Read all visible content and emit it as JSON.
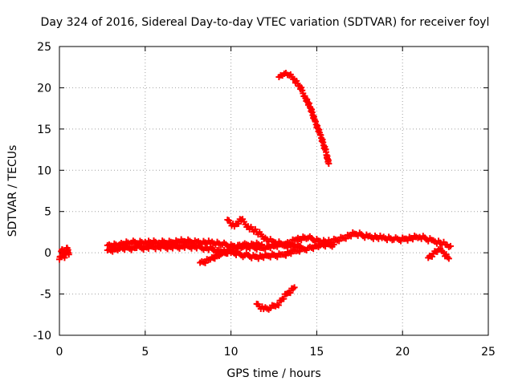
{
  "chart_data": {
    "type": "scatter",
    "title": "Day 324 of 2016, Sidereal Day-to-day VTEC variation (SDTVAR) for receiver foyl",
    "xlabel": "GPS time / hours",
    "ylabel": "SDTVAR / TECUs",
    "xlim": [
      0,
      25
    ],
    "ylim": [
      -10,
      25
    ],
    "xticks": [
      0,
      5,
      10,
      15,
      20,
      25
    ],
    "yticks": [
      -10,
      -5,
      0,
      5,
      10,
      15,
      20,
      25
    ],
    "grid": true,
    "marker": "+",
    "marker_color": "#ff0000",
    "series": [
      {
        "name": "segment-early",
        "x": [
          0.0,
          0.15,
          0.3,
          0.45,
          0.55
        ],
        "y": [
          -0.8,
          0.4,
          -0.6,
          0.6,
          -0.2
        ]
      },
      {
        "name": "segment-main-upper",
        "x": [
          2.8,
          3.5,
          4.2,
          5.0,
          5.8,
          6.5,
          7.2,
          8.0,
          8.8,
          9.5,
          10.2,
          11.0,
          11.8,
          12.5,
          13.2,
          13.8,
          14.5,
          15.2,
          15.8,
          16.5,
          17.2,
          18.0,
          18.8,
          19.5,
          20.2,
          21.0,
          21.8,
          22.5,
          22.8
        ],
        "y": [
          0.9,
          1.0,
          1.2,
          1.3,
          1.2,
          1.3,
          1.4,
          1.3,
          1.2,
          1.0,
          0.8,
          0.7,
          0.6,
          0.8,
          1.1,
          1.6,
          1.8,
          1.4,
          1.3,
          1.8,
          2.3,
          2.0,
          1.8,
          1.6,
          1.7,
          1.9,
          1.5,
          1.0,
          0.8
        ]
      },
      {
        "name": "segment-main-lower",
        "x": [
          2.8,
          3.5,
          4.5,
          5.5,
          6.5,
          7.5,
          8.5,
          9.2,
          10.0,
          10.8,
          11.5,
          12.2,
          13.0,
          13.8,
          14.5,
          15.2,
          16.0
        ],
        "y": [
          0.3,
          0.5,
          0.6,
          0.7,
          0.7,
          0.8,
          0.6,
          0.3,
          0.0,
          -0.3,
          -0.5,
          -0.4,
          -0.2,
          0.2,
          0.6,
          0.9,
          1.0
        ]
      },
      {
        "name": "segment-rising-from-negative",
        "x": [
          8.2,
          8.8,
          9.4,
          10.0,
          10.6,
          11.2,
          11.8
        ],
        "y": [
          -1.2,
          -0.8,
          -0.2,
          0.4,
          0.8,
          1.1,
          1.0
        ]
      },
      {
        "name": "segment-hump",
        "x": [
          9.8,
          10.2,
          10.6,
          11.0,
          11.5,
          12.0,
          12.5,
          13.0,
          13.5,
          14.0
        ],
        "y": [
          4.0,
          3.2,
          4.0,
          3.2,
          2.5,
          1.8,
          1.3,
          1.0,
          0.8,
          0.8
        ]
      },
      {
        "name": "segment-late-dip",
        "x": [
          21.5,
          21.8,
          22.1,
          22.4,
          22.7
        ],
        "y": [
          -0.6,
          -0.1,
          0.4,
          0.0,
          -0.7
        ]
      },
      {
        "name": "segment-high-arc",
        "x": [
          12.8,
          13.1,
          13.4,
          13.7,
          14.0,
          14.3,
          14.6,
          14.9,
          15.2,
          15.5,
          15.7
        ],
        "y": [
          21.3,
          21.7,
          21.5,
          21.0,
          20.2,
          19.0,
          17.7,
          16.0,
          14.3,
          12.5,
          10.8
        ]
      },
      {
        "name": "segment-negative",
        "x": [
          11.5,
          11.9,
          12.3,
          12.7,
          13.0,
          13.3,
          13.7
        ],
        "y": [
          -6.2,
          -6.8,
          -6.7,
          -6.3,
          -5.6,
          -4.9,
          -4.2
        ]
      }
    ]
  }
}
